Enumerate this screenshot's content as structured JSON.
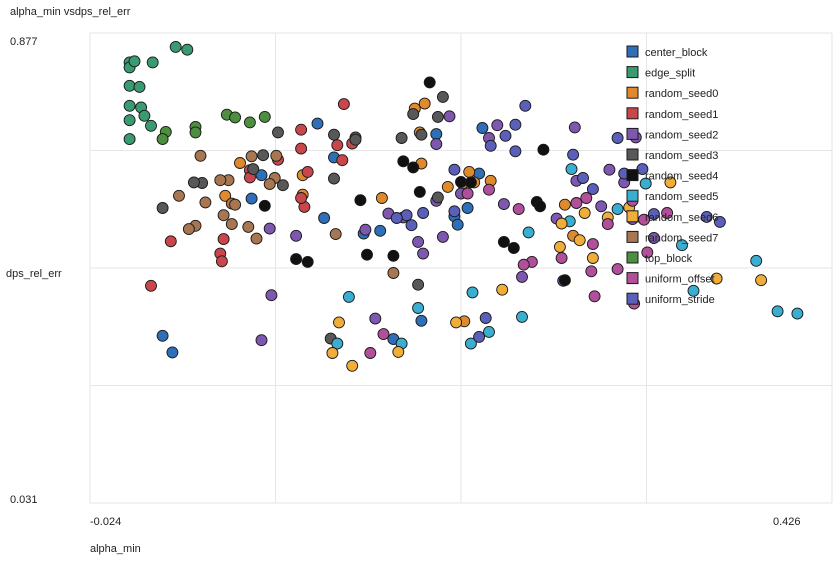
{
  "chart_data": {
    "type": "scatter",
    "title": "alpha_min vsdps_rel_err",
    "xlabel": "alpha_min",
    "ylabel": "dps_rel_err",
    "xlim": [
      -0.024,
      0.426
    ],
    "ylim": [
      0.031,
      0.877
    ],
    "x_tick_labels": [
      "-0.024",
      "0.426"
    ],
    "y_tick_labels": [
      "0.877",
      "0.031"
    ],
    "grid": true,
    "legend_position": "top-right",
    "series": [
      {
        "name": "center_block",
        "color": "#2e6fb8",
        "points": [
          [
            0.08,
            0.621
          ],
          [
            0.114,
            0.714
          ],
          [
            0.124,
            0.653
          ],
          [
            0.186,
            0.695
          ],
          [
            0.074,
            0.579
          ],
          [
            0.118,
            0.544
          ],
          [
            0.142,
            0.516
          ],
          [
            0.152,
            0.521
          ],
          [
            0.02,
            0.332
          ],
          [
            0.026,
            0.302
          ],
          [
            0.16,
            0.326
          ],
          [
            0.212,
            0.624
          ],
          [
            0.197,
            0.547
          ],
          [
            0.199,
            0.532
          ],
          [
            0.205,
            0.562
          ],
          [
            0.177,
            0.359
          ],
          [
            0.214,
            0.706
          ]
        ]
      },
      {
        "name": "edge_split",
        "color": "#3a9a70",
        "points": [
          [
            0.0,
            0.824
          ],
          [
            0.0,
            0.815
          ],
          [
            0.003,
            0.826
          ],
          [
            0.0,
            0.782
          ],
          [
            0.006,
            0.78
          ],
          [
            0.014,
            0.824
          ],
          [
            0.028,
            0.852
          ],
          [
            0.035,
            0.847
          ],
          [
            0.0,
            0.746
          ],
          [
            0.007,
            0.743
          ],
          [
            0.0,
            0.72
          ],
          [
            0.009,
            0.728
          ],
          [
            0.013,
            0.71
          ],
          [
            0.0,
            0.686
          ]
        ]
      },
      {
        "name": "random_seed0",
        "color": "#e08a2e",
        "points": [
          [
            0.173,
            0.741
          ],
          [
            0.179,
            0.75
          ],
          [
            0.176,
            0.698
          ],
          [
            0.067,
            0.643
          ],
          [
            0.105,
            0.621
          ],
          [
            0.177,
            0.642
          ],
          [
            0.193,
            0.6
          ],
          [
            0.202,
            0.606
          ],
          [
            0.206,
            0.627
          ],
          [
            0.209,
            0.608
          ],
          [
            0.219,
            0.611
          ],
          [
            0.105,
            0.586
          ],
          [
            0.058,
            0.584
          ],
          [
            0.153,
            0.58
          ],
          [
            0.264,
            0.568
          ],
          [
            0.269,
            0.512
          ],
          [
            0.203,
            0.358
          ]
        ]
      },
      {
        "name": "random_seed1",
        "color": "#c9474a",
        "points": [
          [
            0.13,
            0.749
          ],
          [
            0.104,
            0.703
          ],
          [
            0.104,
            0.669
          ],
          [
            0.126,
            0.675
          ],
          [
            0.135,
            0.678
          ],
          [
            0.129,
            0.648
          ],
          [
            0.09,
            0.649
          ],
          [
            0.108,
            0.627
          ],
          [
            0.073,
            0.63
          ],
          [
            0.073,
            0.617
          ],
          [
            0.057,
            0.506
          ],
          [
            0.055,
            0.48
          ],
          [
            0.025,
            0.502
          ],
          [
            0.056,
            0.466
          ],
          [
            0.106,
            0.564
          ],
          [
            0.104,
            0.58
          ],
          [
            0.013,
            0.422
          ]
        ]
      },
      {
        "name": "random_seed2",
        "color": "#7e58b0",
        "points": [
          [
            0.194,
            0.727
          ],
          [
            0.223,
            0.711
          ],
          [
            0.218,
            0.688
          ],
          [
            0.186,
            0.677
          ],
          [
            0.27,
            0.707
          ],
          [
            0.307,
            0.689
          ],
          [
            0.291,
            0.631
          ],
          [
            0.3,
            0.608
          ],
          [
            0.271,
            0.611
          ],
          [
            0.201,
            0.588
          ],
          [
            0.186,
            0.575
          ],
          [
            0.157,
            0.552
          ],
          [
            0.143,
            0.523
          ],
          [
            0.085,
            0.525
          ],
          [
            0.101,
            0.512
          ],
          [
            0.166,
            0.545
          ],
          [
            0.175,
            0.501
          ],
          [
            0.178,
            0.48
          ],
          [
            0.19,
            0.51
          ],
          [
            0.227,
            0.569
          ],
          [
            0.259,
            0.543
          ],
          [
            0.286,
            0.565
          ],
          [
            0.305,
            0.542
          ],
          [
            0.318,
            0.508
          ],
          [
            0.238,
            0.438
          ],
          [
            0.263,
            0.431
          ],
          [
            0.149,
            0.363
          ],
          [
            0.086,
            0.405
          ],
          [
            0.08,
            0.324
          ]
        ]
      },
      {
        "name": "random_seed3",
        "color": "#585858",
        "points": [
          [
            0.19,
            0.762
          ],
          [
            0.187,
            0.726
          ],
          [
            0.177,
            0.694
          ],
          [
            0.172,
            0.731
          ],
          [
            0.165,
            0.688
          ],
          [
            0.124,
            0.694
          ],
          [
            0.09,
            0.698
          ],
          [
            0.081,
            0.657
          ],
          [
            0.075,
            0.632
          ],
          [
            0.044,
            0.607
          ],
          [
            0.039,
            0.608
          ],
          [
            0.02,
            0.562
          ],
          [
            0.124,
            0.615
          ],
          [
            0.093,
            0.603
          ],
          [
            0.137,
            0.689
          ],
          [
            0.137,
            0.685
          ],
          [
            0.187,
            0.581
          ],
          [
            0.175,
            0.424
          ],
          [
            0.122,
            0.327
          ]
        ]
      },
      {
        "name": "random_seed4",
        "color": "#111111",
        "points": [
          [
            0.182,
            0.788
          ],
          [
            0.166,
            0.646
          ],
          [
            0.172,
            0.635
          ],
          [
            0.201,
            0.609
          ],
          [
            0.207,
            0.608
          ],
          [
            0.176,
            0.591
          ],
          [
            0.251,
            0.667
          ],
          [
            0.247,
            0.573
          ],
          [
            0.249,
            0.565
          ],
          [
            0.14,
            0.576
          ],
          [
            0.082,
            0.566
          ],
          [
            0.101,
            0.47
          ],
          [
            0.108,
            0.465
          ],
          [
            0.227,
            0.501
          ],
          [
            0.233,
            0.49
          ],
          [
            0.264,
            0.432
          ],
          [
            0.144,
            0.478
          ],
          [
            0.16,
            0.476
          ]
        ]
      },
      {
        "name": "random_seed5",
        "color": "#3aaed0",
        "points": [
          [
            0.268,
            0.632
          ],
          [
            0.313,
            0.606
          ],
          [
            0.296,
            0.56
          ],
          [
            0.267,
            0.538
          ],
          [
            0.242,
            0.518
          ],
          [
            0.335,
            0.495
          ],
          [
            0.38,
            0.467
          ],
          [
            0.342,
            0.413
          ],
          [
            0.405,
            0.372
          ],
          [
            0.393,
            0.376
          ],
          [
            0.218,
            0.339
          ],
          [
            0.207,
            0.318
          ],
          [
            0.126,
            0.318
          ],
          [
            0.165,
            0.318
          ],
          [
            0.133,
            0.402
          ],
          [
            0.175,
            0.382
          ],
          [
            0.238,
            0.366
          ],
          [
            0.208,
            0.41
          ]
        ]
      },
      {
        "name": "random_seed6",
        "color": "#f0ad3a",
        "points": [
          [
            0.328,
            0.608
          ],
          [
            0.303,
            0.563
          ],
          [
            0.29,
            0.545
          ],
          [
            0.276,
            0.553
          ],
          [
            0.262,
            0.534
          ],
          [
            0.273,
            0.504
          ],
          [
            0.261,
            0.492
          ],
          [
            0.281,
            0.472
          ],
          [
            0.356,
            0.435
          ],
          [
            0.383,
            0.432
          ],
          [
            0.226,
            0.415
          ],
          [
            0.198,
            0.356
          ],
          [
            0.127,
            0.356
          ],
          [
            0.163,
            0.303
          ],
          [
            0.123,
            0.301
          ],
          [
            0.135,
            0.278
          ]
        ]
      },
      {
        "name": "random_seed7",
        "color": "#a87650",
        "points": [
          [
            0.043,
            0.656
          ],
          [
            0.074,
            0.655
          ],
          [
            0.089,
            0.656
          ],
          [
            0.088,
            0.616
          ],
          [
            0.085,
            0.605
          ],
          [
            0.06,
            0.612
          ],
          [
            0.055,
            0.612
          ],
          [
            0.062,
            0.57
          ],
          [
            0.046,
            0.572
          ],
          [
            0.03,
            0.584
          ],
          [
            0.077,
            0.507
          ],
          [
            0.064,
            0.568
          ],
          [
            0.072,
            0.528
          ],
          [
            0.062,
            0.533
          ],
          [
            0.04,
            0.53
          ],
          [
            0.036,
            0.524
          ],
          [
            0.057,
            0.549
          ],
          [
            0.125,
            0.515
          ],
          [
            0.16,
            0.445
          ]
        ]
      },
      {
        "name": "top_block",
        "color": "#4c8f3e",
        "points": [
          [
            0.059,
            0.73
          ],
          [
            0.064,
            0.725
          ],
          [
            0.082,
            0.726
          ],
          [
            0.073,
            0.716
          ],
          [
            0.04,
            0.708
          ],
          [
            0.04,
            0.698
          ],
          [
            0.022,
            0.699
          ],
          [
            0.02,
            0.686
          ]
        ]
      },
      {
        "name": "uniform_offset",
        "color": "#b24f9b",
        "points": [
          [
            0.277,
            0.58
          ],
          [
            0.305,
            0.575
          ],
          [
            0.326,
            0.553
          ],
          [
            0.312,
            0.541
          ],
          [
            0.29,
            0.533
          ],
          [
            0.271,
            0.571
          ],
          [
            0.218,
            0.595
          ],
          [
            0.205,
            0.588
          ],
          [
            0.236,
            0.56
          ],
          [
            0.281,
            0.497
          ],
          [
            0.262,
            0.472
          ],
          [
            0.28,
            0.448
          ],
          [
            0.296,
            0.452
          ],
          [
            0.314,
            0.482
          ],
          [
            0.306,
            0.39
          ],
          [
            0.282,
            0.403
          ],
          [
            0.244,
            0.465
          ],
          [
            0.239,
            0.46
          ],
          [
            0.154,
            0.335
          ],
          [
            0.146,
            0.301
          ]
        ]
      },
      {
        "name": "uniform_stride",
        "color": "#5a5fba",
        "points": [
          [
            0.24,
            0.746
          ],
          [
            0.234,
            0.712
          ],
          [
            0.228,
            0.692
          ],
          [
            0.219,
            0.674
          ],
          [
            0.197,
            0.631
          ],
          [
            0.269,
            0.658
          ],
          [
            0.296,
            0.688
          ],
          [
            0.311,
            0.632
          ],
          [
            0.3,
            0.624
          ],
          [
            0.275,
            0.616
          ],
          [
            0.281,
            0.596
          ],
          [
            0.234,
            0.664
          ],
          [
            0.197,
            0.556
          ],
          [
            0.178,
            0.553
          ],
          [
            0.168,
            0.549
          ],
          [
            0.171,
            0.531
          ],
          [
            0.162,
            0.544
          ],
          [
            0.318,
            0.551
          ],
          [
            0.35,
            0.546
          ],
          [
            0.358,
            0.537
          ],
          [
            0.216,
            0.364
          ],
          [
            0.212,
            0.33
          ]
        ]
      }
    ]
  }
}
